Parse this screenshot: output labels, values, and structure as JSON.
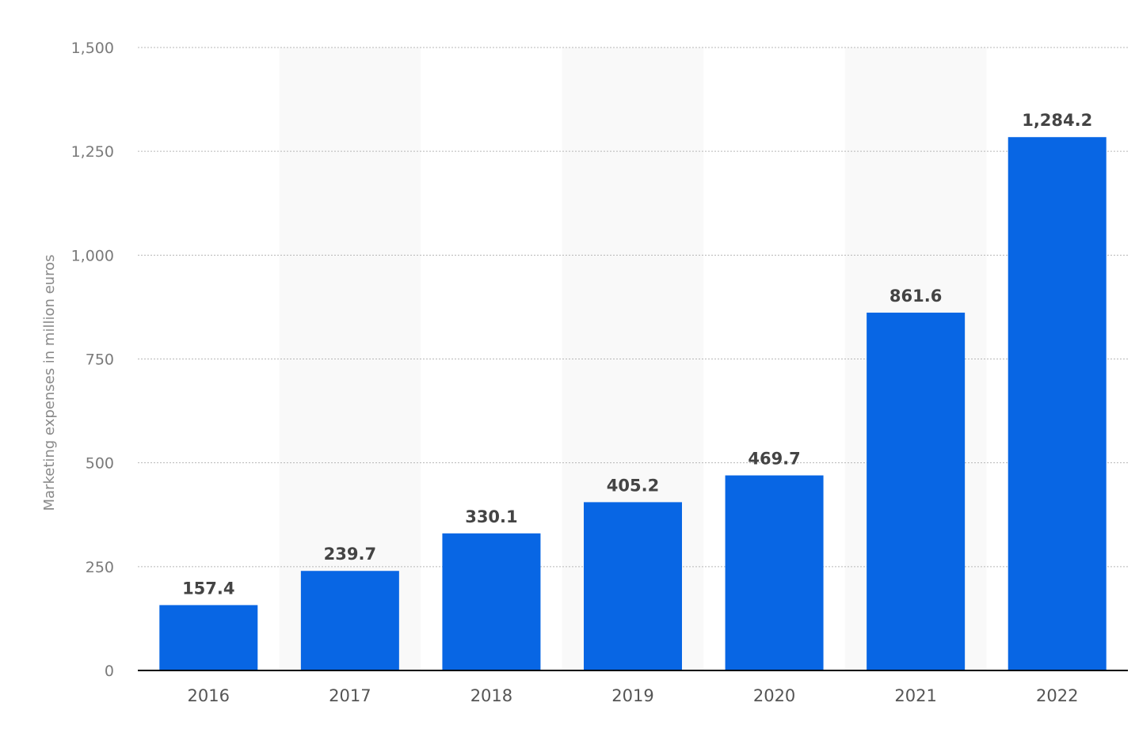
{
  "chart_data": {
    "type": "bar",
    "categories": [
      "2016",
      "2017",
      "2018",
      "2019",
      "2020",
      "2021",
      "2022"
    ],
    "series": [
      {
        "values": [
          157.4,
          239.7,
          330.1,
          405.2,
          469.7,
          861.6,
          1284.2
        ],
        "color": "#0866e4"
      }
    ],
    "data_labels": [
      "157.4",
      "239.7",
      "330.1",
      "405.2",
      "469.7",
      "861.6",
      "1,284.2"
    ],
    "ylabel": "Marketing expenses in million euros",
    "xlabel": "",
    "title": "",
    "ylim": [
      0,
      1500
    ],
    "yticks": [
      0,
      250,
      500,
      750,
      1000,
      1250,
      1500
    ],
    "ytick_labels": [
      "0",
      "250",
      "500",
      "750",
      "1,000",
      "1,250",
      "1,500"
    ],
    "grid": true,
    "legend": "none",
    "alternating_bands": true,
    "band_color": "#f9f9f9",
    "bar_color": "#0866e4"
  }
}
